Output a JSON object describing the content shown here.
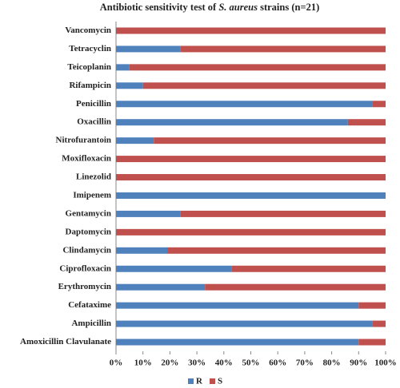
{
  "chart_data": {
    "type": "stacked_bar_horizontal",
    "title": [
      "Antibiotic  sensitivity test of ",
      "S. aureus",
      " strains (n=21)"
    ],
    "categories": [
      "Vancomycin",
      "Tetracyclin",
      "Teicoplanin",
      "Rifampicin",
      "Penicillin",
      "Oxacillin",
      "Nitrofurantoin",
      "Moxifloxacin",
      "Linezolid",
      "Imipenem",
      "Gentamycin",
      "Daptomycin",
      "Clindamycin",
      "Ciprofloxacin",
      "Erythromycin",
      "Cefataxime",
      "Ampicillin",
      "Amoxicillin Clavulanate"
    ],
    "series": [
      {
        "name": "R",
        "color": "#4f81bd",
        "values": [
          0,
          24,
          5,
          10,
          95,
          86,
          14,
          0,
          0,
          100,
          24,
          0,
          19,
          43,
          33,
          90,
          95,
          90
        ]
      },
      {
        "name": "S",
        "color": "#c0504d",
        "values": [
          100,
          76,
          95,
          90,
          5,
          14,
          86,
          100,
          100,
          0,
          76,
          100,
          81,
          57,
          67,
          10,
          5,
          10
        ]
      }
    ],
    "xlim": [
      0,
      100
    ],
    "xticks": [
      {
        "value": 0,
        "label": "0%"
      },
      {
        "value": 10,
        "label": "10%"
      },
      {
        "value": 20,
        "label": "20%"
      },
      {
        "value": 30,
        "label": "30%"
      },
      {
        "value": 40,
        "label": "40%"
      },
      {
        "value": 50,
        "label": "50%"
      },
      {
        "value": 60,
        "label": "60%"
      },
      {
        "value": 70,
        "label": "70%"
      },
      {
        "value": 80,
        "label": "80%"
      },
      {
        "value": 90,
        "label": "90%"
      },
      {
        "value": 100,
        "label": "100%"
      }
    ],
    "legend": "bottom"
  }
}
